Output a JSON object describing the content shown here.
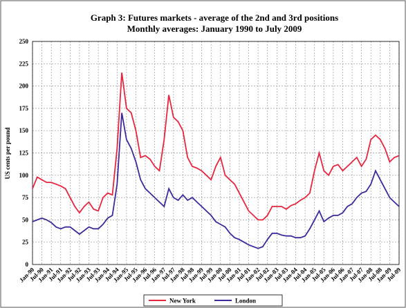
{
  "chart_data": {
    "type": "line",
    "title": "Graph 3: Futures markets - average of the 2nd and 3rd positions",
    "subtitle": "Monthly averages:  January 1990 to July 2009",
    "y_label": "US cents per pound",
    "categories": [
      "Jan-90",
      null,
      "Jul-90",
      null,
      "Jan-91",
      null,
      "Jul-91",
      null,
      "Jan-92",
      null,
      "Jul-92",
      null,
      "Jan-93",
      null,
      "Jul-93",
      null,
      "Jan-94",
      null,
      "Jul-94",
      null,
      "Jan-95",
      null,
      "Jul-95",
      null,
      "Jan-96",
      null,
      "Jul-96",
      null,
      "Jan-97",
      null,
      "Jul-97",
      null,
      "Jan-98",
      null,
      "Jul-98",
      null,
      "Jan-99",
      null,
      "Jul-99",
      null,
      "Jan-00",
      null,
      "Jul-00",
      null,
      "Jan-01",
      null,
      "Jul-01",
      null,
      "Jan-02",
      null,
      "Jul-02",
      null,
      "Jan-03",
      null,
      "Jul-03",
      null,
      "Jan-04",
      null,
      "Jul-04",
      null,
      "Jan-05",
      null,
      "Jul-05",
      null,
      "Jan-06",
      null,
      "Jul-06",
      null,
      "Jan-07",
      null,
      "Jul-07",
      null,
      "Jan-08",
      null,
      "Jul-08",
      null,
      "Jan-09",
      null,
      "Jul-09"
    ],
    "series": [
      {
        "name": "New York",
        "color": "#e8253f",
        "values": [
          85,
          98,
          95,
          92,
          92,
          90,
          88,
          85,
          75,
          65,
          58,
          65,
          70,
          62,
          60,
          75,
          80,
          78,
          130,
          215,
          175,
          170,
          150,
          120,
          122,
          118,
          110,
          105,
          140,
          190,
          165,
          160,
          150,
          120,
          110,
          108,
          105,
          100,
          95,
          110,
          120,
          100,
          95,
          90,
          80,
          70,
          60,
          55,
          50,
          50,
          55,
          65,
          65,
          65,
          62,
          66,
          68,
          72,
          75,
          80,
          105,
          125,
          105,
          100,
          110,
          112,
          105,
          110,
          115,
          120,
          110,
          118,
          140,
          145,
          140,
          130,
          115,
          120,
          122
        ]
      },
      {
        "name": "London",
        "color": "#3a2a9c",
        "values": [
          48,
          50,
          52,
          50,
          47,
          42,
          40,
          42,
          42,
          38,
          34,
          38,
          42,
          40,
          40,
          45,
          52,
          55,
          90,
          170,
          140,
          130,
          115,
          95,
          85,
          80,
          75,
          70,
          65,
          85,
          75,
          72,
          78,
          72,
          75,
          70,
          65,
          60,
          55,
          48,
          45,
          42,
          35,
          30,
          28,
          25,
          22,
          20,
          18,
          20,
          28,
          35,
          35,
          33,
          32,
          32,
          30,
          30,
          32,
          40,
          50,
          60,
          48,
          52,
          55,
          55,
          58,
          65,
          68,
          75,
          80,
          82,
          90,
          105,
          95,
          85,
          75,
          70,
          65
        ]
      }
    ],
    "ylim": [
      0,
      250
    ],
    "yticks": [
      0,
      25,
      50,
      75,
      100,
      125,
      150,
      175,
      200,
      225,
      250
    ],
    "grid": true
  }
}
